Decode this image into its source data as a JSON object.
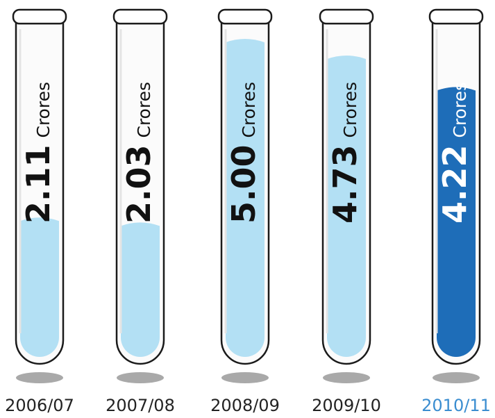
{
  "chart_data": {
    "type": "bar",
    "categories": [
      "2006/07",
      "2007/08",
      "2008/09",
      "2009/10",
      "2010/11"
    ],
    "values": [
      2.11,
      2.03,
      5.0,
      4.73,
      4.22
    ],
    "value_labels": [
      "2.11",
      "2.03",
      "5.00",
      "4.73",
      "4.22"
    ],
    "unit": "Crores",
    "ylim": [
      0,
      5.0
    ],
    "highlight_index": 4,
    "title": "",
    "xlabel": "",
    "ylabel": ""
  },
  "colors": {
    "fill": "#b3e0f4",
    "fill_highlight": "#1e6db8",
    "text": "#111111",
    "text_highlight": "#ffffff",
    "year_text": "#222222",
    "year_highlight": "#3a8dd0",
    "tube_outline": "#1a1a1a",
    "shadow": "#9a9a9a"
  }
}
